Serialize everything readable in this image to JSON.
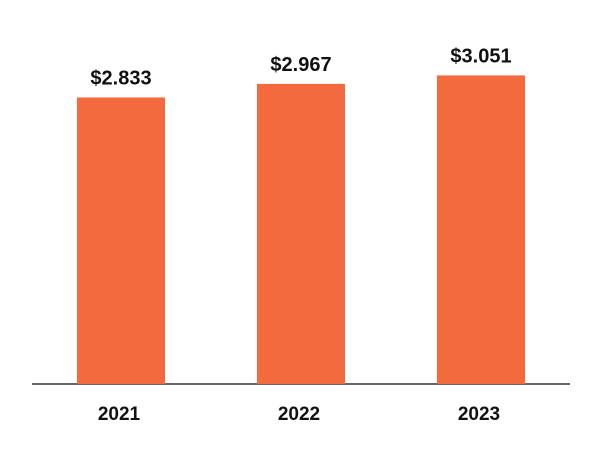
{
  "chart_data": {
    "type": "bar",
    "categories": [
      "2021",
      "2022",
      "2023"
    ],
    "values": [
      2.833,
      2.967,
      3.051
    ],
    "value_labels": [
      "$2.833",
      "$2.967",
      "$3.051"
    ],
    "ylim": [
      0,
      3.5
    ],
    "grid": false,
    "legend": "none",
    "colors": {
      "bar": "#f26a3d",
      "axis": "#666666",
      "text": "#111111"
    }
  }
}
